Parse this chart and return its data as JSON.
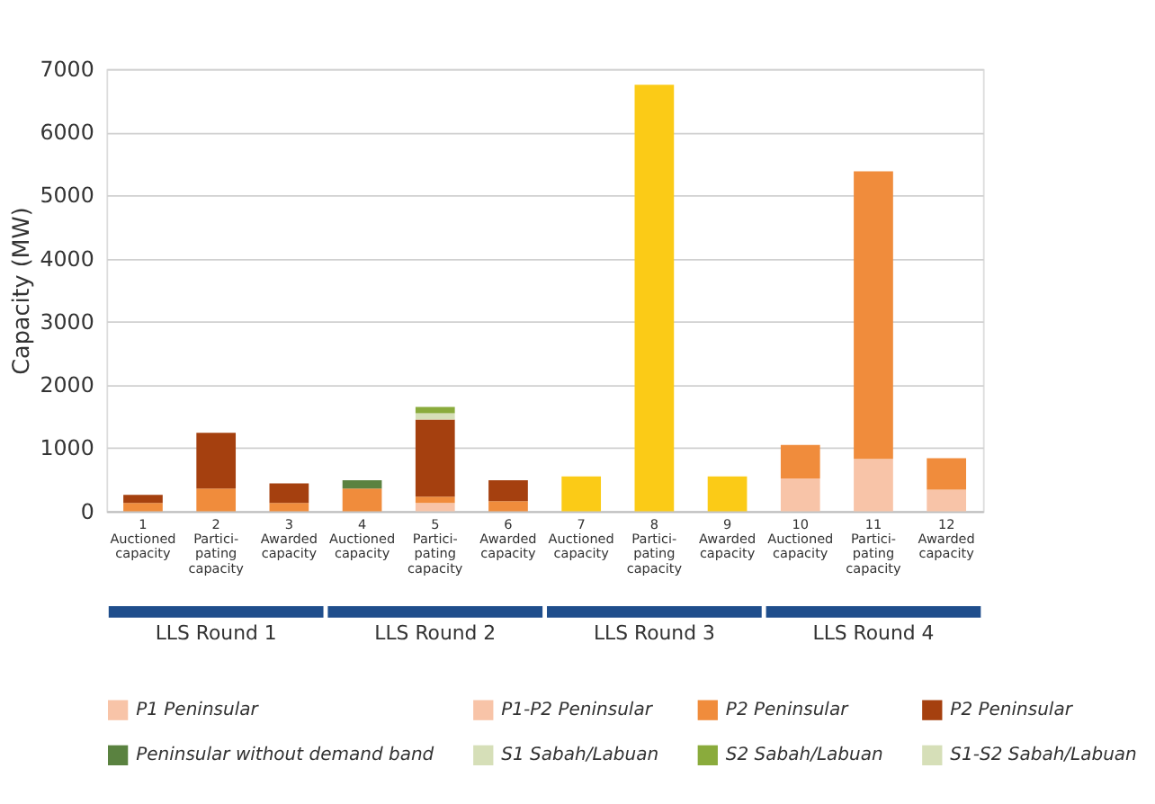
{
  "chart_data": {
    "type": "bar",
    "stacked": true,
    "ylabel": "Capacity (MW)",
    "categories": [
      "1\nAuctioned\ncapacity",
      "2\nPartici-\npating\ncapacity",
      "3\nAwarded\ncapacity",
      "4\nAuctioned\ncapacity",
      "5\nPartici-\npating\ncapacity",
      "6\nAwarded\ncapacity",
      "7\nAuctioned\ncapacity",
      "8\nPartici-\npating\ncapacity",
      "9\nAwarded\ncapacity",
      "10\nAuctioned\ncapacity",
      "11\nPartici-\npating\ncapacity",
      "12\nAwarded\ncapacity"
    ],
    "series": [
      {
        "name": "P1 Peninsular",
        "color": "#f8c4a8",
        "values": [
          null,
          null,
          null,
          null,
          130,
          null,
          null,
          null,
          null,
          null,
          null,
          null
        ]
      },
      {
        "name": "P1-P2 Peninsular",
        "color": "#f8c4a8",
        "values": [
          null,
          null,
          null,
          null,
          null,
          null,
          null,
          null,
          null,
          520,
          830,
          340
        ]
      },
      {
        "name": "P2 Peninsular",
        "color": "#f08c3c",
        "values": [
          130,
          360,
          130,
          360,
          100,
          160,
          null,
          null,
          null,
          530,
          4550,
          500
        ]
      },
      {
        "name": "P2 Peninsular",
        "color": "#a5400f",
        "values": [
          130,
          880,
          310,
          null,
          1220,
          330,
          null,
          null,
          null,
          null,
          null,
          null
        ]
      },
      {
        "name": "Peninsular without demand band",
        "color": "#5a8240",
        "values": [
          null,
          null,
          null,
          130,
          null,
          null,
          null,
          null,
          null,
          null,
          null,
          null
        ]
      },
      {
        "name": "S1 Sabah/Labuan",
        "color": "#d6dfb8",
        "values": [
          null,
          null,
          null,
          null,
          100,
          null,
          null,
          null,
          null,
          null,
          null,
          null
        ]
      },
      {
        "name": "S2 Sabah/Labuan",
        "color": "#8aab3c",
        "values": [
          null,
          null,
          null,
          null,
          100,
          null,
          null,
          null,
          null,
          null,
          null,
          null
        ]
      },
      {
        "name": "S1-S2 Sabah/Labuan",
        "color": "#d6dfb8",
        "values": [
          null,
          null,
          null,
          null,
          null,
          null,
          null,
          null,
          null,
          null,
          null,
          null
        ]
      },
      {
        "color": "#fbcb17",
        "values": [
          null,
          null,
          null,
          null,
          null,
          null,
          550,
          6750,
          550,
          null,
          null,
          null
        ]
      }
    ],
    "ylim": [
      0,
      7000
    ],
    "yticks": [
      0,
      1000,
      2000,
      3000,
      4000,
      5000,
      6000,
      7000
    ],
    "grid": "y",
    "legend": "bottom",
    "annotations": [
      "LLS Round 1",
      "LLS Round 2",
      "LLS Round 3",
      "LLS Round 4"
    ]
  }
}
